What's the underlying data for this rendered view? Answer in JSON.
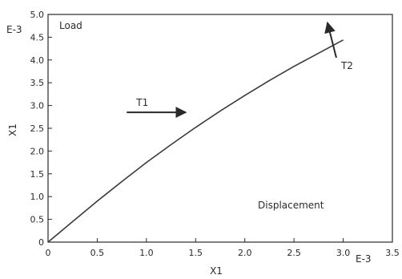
{
  "chart_data": {
    "type": "line",
    "title": "",
    "in_plot_labels": {
      "y_quantity": "Load",
      "x_quantity": "Displacement"
    },
    "ylabel": "X1",
    "xlabel": "X1",
    "y_exponent_label": "E-3",
    "x_exponent_label": "E-3",
    "xlim": [
      0,
      3.5
    ],
    "ylim": [
      0,
      5.0
    ],
    "x_ticks": [
      0,
      0.5,
      1.0,
      1.5,
      2.0,
      2.5,
      3.0,
      3.5
    ],
    "x_tick_labels": [
      "0",
      "0.5",
      "1.0",
      "1.5",
      "2.0",
      "2.5",
      "3.0",
      "3.5"
    ],
    "y_ticks": [
      0,
      0.5,
      1.0,
      1.5,
      2.0,
      2.5,
      3.0,
      3.5,
      4.0,
      4.5,
      5.0
    ],
    "y_tick_labels": [
      "0",
      "0.5",
      "1.0",
      "1.5",
      "2.0",
      "2.5",
      "3.0",
      "3.5",
      "4.0",
      "4.5",
      "5.0"
    ],
    "grid": false,
    "series": [
      {
        "x": [
          0,
          0.25,
          0.5,
          0.75,
          1.0,
          1.25,
          1.5,
          1.75,
          2.0,
          2.25,
          2.5,
          2.75,
          3.0
        ],
        "y": [
          0,
          0.45,
          0.9,
          1.33,
          1.75,
          2.14,
          2.52,
          2.88,
          3.22,
          3.55,
          3.86,
          4.15,
          4.44
        ],
        "color": "#3a3a3a"
      }
    ],
    "annotations": [
      {
        "text": "T1",
        "arrow_from": [
          0.8,
          2.85
        ],
        "arrow_to": [
          1.4,
          2.85
        ]
      },
      {
        "text": "T2",
        "arrow_from": [
          2.93,
          4.05
        ],
        "arrow_to": [
          2.84,
          4.82
        ]
      }
    ]
  }
}
